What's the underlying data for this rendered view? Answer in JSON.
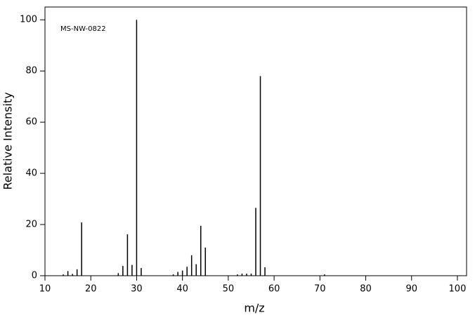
{
  "chart_data": {
    "type": "bar",
    "annotation": "MS-NW-0822",
    "x_label": "m/z",
    "y_label": "Relative Intensity",
    "x": [
      14,
      15,
      16,
      17,
      18,
      26,
      27,
      28,
      29,
      30,
      31,
      38,
      39,
      40,
      41,
      42,
      43,
      44,
      45,
      52,
      53,
      54,
      55,
      56,
      57,
      58,
      71
    ],
    "values": [
      0.5,
      1.8,
      0.7,
      2.5,
      20.8,
      1,
      3.8,
      16.2,
      4.2,
      100,
      3,
      0.5,
      1.5,
      2,
      3.5,
      8,
      4.5,
      19.5,
      11,
      0.5,
      0.8,
      0.8,
      0.8,
      26.5,
      78,
      3.3,
      0.5
    ],
    "color": "#000000",
    "xlim": [
      10,
      102
    ],
    "xticks": [
      10,
      20,
      30,
      40,
      50,
      60,
      70,
      80,
      90,
      100
    ],
    "ylim": [
      0,
      105
    ],
    "yticks": [
      0,
      20,
      40,
      60,
      80,
      100
    ]
  }
}
